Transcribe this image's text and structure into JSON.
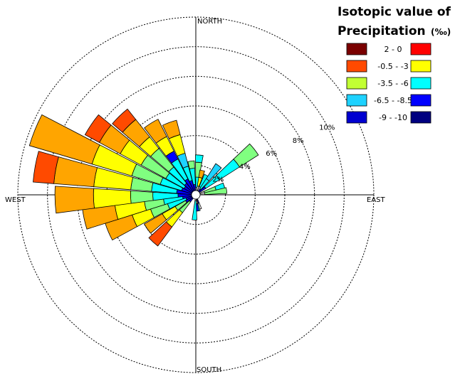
{
  "chart_data": {
    "type": "rose",
    "direction_labels": {
      "north": "NORTH",
      "south": "SOUTH",
      "east": "EAST",
      "west": "WEST"
    },
    "ring_labels": [
      {
        "value": 2,
        "label": "2%"
      },
      {
        "value": 4,
        "label": "4%"
      },
      {
        "value": 6,
        "label": "6%"
      },
      {
        "value": 8,
        "label": "8%"
      },
      {
        "value": 10,
        "label": "10%"
      }
    ],
    "rings": [
      2,
      4,
      6,
      8,
      10,
      12
    ],
    "rmax": 12,
    "ring_label_angle": 64,
    "sector_width_deg": 11,
    "legend": {
      "title_line1": "Isotopic value of",
      "title_line2": "Precipitation",
      "unit": "(‰)",
      "bins": [
        {
          "label": "2 - 0",
          "colors": [
            "#7a0000",
            "#ff0000"
          ]
        },
        {
          "label": "-0.5 - -3",
          "colors": [
            "#ff4a00",
            "#ffff00"
          ]
        },
        {
          "label": "-3.5 - -6",
          "colors": [
            "#c2ff33",
            "#00ffff"
          ]
        },
        {
          "label": "-6.5 - -8.5",
          "colors": [
            "#1ed2ff",
            "#0000ff"
          ]
        },
        {
          "label": "-9 - -10",
          "colors": [
            "#0000d0",
            "#000080"
          ]
        }
      ]
    },
    "sectors": [
      {
        "direction": 5,
        "segments": [
          {
            "value": 0.5,
            "color": "#ffffff"
          },
          {
            "value": 0.7,
            "color": "#00ffff"
          },
          {
            "value": 1.0,
            "color": "#80ff80"
          },
          {
            "value": 0.5,
            "color": "#00ffff"
          }
        ]
      },
      {
        "direction": 15,
        "segments": [
          {
            "value": 0.6,
            "color": "#ffffff"
          },
          {
            "value": 0.6,
            "color": "#ffff00"
          },
          {
            "value": 0.5,
            "color": "#ffa500"
          }
        ]
      },
      {
        "direction": 28,
        "segments": [
          {
            "value": 0.6,
            "color": "#ffffff"
          },
          {
            "value": 0.9,
            "color": "#00ffff"
          }
        ]
      },
      {
        "direction": 38,
        "segments": [
          {
            "value": 0.5,
            "color": "#0000ff"
          },
          {
            "value": 0.8,
            "color": "#00ffff"
          },
          {
            "value": 1.2,
            "color": "#1ed2ff"
          }
        ]
      },
      {
        "direction": 52,
        "segments": [
          {
            "value": 0.8,
            "color": "#0000ff"
          },
          {
            "value": 1.1,
            "color": "#00ffff"
          },
          {
            "value": 1.6,
            "color": "#00ffff"
          },
          {
            "value": 1.5,
            "color": "#80ff80"
          }
        ]
      },
      {
        "direction": 72,
        "segments": [
          {
            "value": 0.6,
            "color": "#ffffff"
          },
          {
            "value": 0.8,
            "color": "#80ff80"
          },
          {
            "value": 0.6,
            "color": "#00ffff"
          }
        ]
      },
      {
        "direction": 82,
        "segments": [
          {
            "value": 0.6,
            "color": "#ffffff"
          },
          {
            "value": 1.5,
            "color": "#80ff80"
          }
        ]
      },
      {
        "direction": 163,
        "segments": [
          {
            "value": 0.6,
            "color": "#0000ff"
          },
          {
            "value": 0.4,
            "color": "#ffffff"
          }
        ]
      },
      {
        "direction": 170,
        "segments": [
          {
            "value": 0.6,
            "color": "#ff0000"
          },
          {
            "value": 0.5,
            "color": "#00ffff"
          }
        ]
      },
      {
        "direction": 175,
        "segments": [
          {
            "value": 0.6,
            "color": "#ffffff"
          },
          {
            "value": 0.5,
            "color": "#0000ff"
          }
        ]
      },
      {
        "direction": 183,
        "segments": [
          {
            "value": 0.4,
            "color": "#ffffff"
          },
          {
            "value": 1.3,
            "color": "#00ffff"
          }
        ]
      },
      {
        "direction": 222,
        "segments": [
          {
            "value": 0.6,
            "color": "#0000ff"
          },
          {
            "value": 0.9,
            "color": "#80ff80"
          },
          {
            "value": 1.2,
            "color": "#ffff00"
          },
          {
            "value": 1.6,
            "color": "#ff4a00"
          }
        ]
      },
      {
        "direction": 235,
        "segments": [
          {
            "value": 0.8,
            "color": "#0000ff"
          },
          {
            "value": 0.8,
            "color": "#80ff80"
          },
          {
            "value": 1.0,
            "color": "#ffff00"
          },
          {
            "value": 1.4,
            "color": "#ffa500"
          }
        ]
      },
      {
        "direction": 247,
        "segments": [
          {
            "value": 0.7,
            "color": "#0000ff"
          },
          {
            "value": 1.3,
            "color": "#00ffff"
          },
          {
            "value": 1.2,
            "color": "#80ff80"
          },
          {
            "value": 1.3,
            "color": "#ffff00"
          },
          {
            "value": 1.9,
            "color": "#ffa500"
          }
        ]
      },
      {
        "direction": 258,
        "segments": [
          {
            "value": 0.9,
            "color": "#0000ff"
          },
          {
            "value": 1.3,
            "color": "#00ffff"
          },
          {
            "value": 1.3,
            "color": "#80ff80"
          },
          {
            "value": 2.0,
            "color": "#ffff00"
          },
          {
            "value": 2.2,
            "color": "#ffa500"
          }
        ]
      },
      {
        "direction": 268,
        "segments": [
          {
            "value": 1.2,
            "color": "#0000ff"
          },
          {
            "value": 1.7,
            "color": "#00ffff"
          },
          {
            "value": 1.5,
            "color": "#80ff80"
          },
          {
            "value": 2.5,
            "color": "#ffff00"
          },
          {
            "value": 2.6,
            "color": "#ffa500"
          }
        ]
      },
      {
        "direction": 280,
        "segments": [
          {
            "value": 1.3,
            "color": "#0000ff"
          },
          {
            "value": 1.7,
            "color": "#00ffff"
          },
          {
            "value": 1.4,
            "color": "#80ff80"
          },
          {
            "value": 2.5,
            "color": "#ffff00"
          },
          {
            "value": 2.7,
            "color": "#ffa500"
          },
          {
            "value": 1.4,
            "color": "#ff4a00"
          }
        ]
      },
      {
        "direction": 292,
        "segments": [
          {
            "value": 1.0,
            "color": "#0000ff"
          },
          {
            "value": 1.5,
            "color": "#00ffff"
          },
          {
            "value": 2.0,
            "color": "#80ff80"
          },
          {
            "value": 2.8,
            "color": "#ffff00"
          },
          {
            "value": 4.4,
            "color": "#ffa500"
          }
        ]
      },
      {
        "direction": 304,
        "segments": [
          {
            "value": 0.9,
            "color": "#0000ff"
          },
          {
            "value": 1.4,
            "color": "#00ffff"
          },
          {
            "value": 1.9,
            "color": "#80ff80"
          },
          {
            "value": 1.6,
            "color": "#ffff00"
          },
          {
            "value": 1.6,
            "color": "#ffa500"
          },
          {
            "value": 1.1,
            "color": "#ff4a00"
          }
        ]
      },
      {
        "direction": 316,
        "segments": [
          {
            "value": 1.0,
            "color": "#0000ff"
          },
          {
            "value": 1.4,
            "color": "#00ffff"
          },
          {
            "value": 1.6,
            "color": "#80ff80"
          },
          {
            "value": 1.0,
            "color": "#ffff00"
          },
          {
            "value": 1.5,
            "color": "#ffa500"
          },
          {
            "value": 0.9,
            "color": "#ff4a00"
          }
        ]
      },
      {
        "direction": 328,
        "segments": [
          {
            "value": 1.2,
            "color": "#0000ff"
          },
          {
            "value": 1.5,
            "color": "#00ffff"
          },
          {
            "value": 0.6,
            "color": "#0000ff"
          },
          {
            "value": 1.1,
            "color": "#ffff00"
          },
          {
            "value": 1.3,
            "color": "#ffa500"
          }
        ]
      },
      {
        "direction": 340,
        "segments": [
          {
            "value": 1.0,
            "color": "#0000ff"
          },
          {
            "value": 1.0,
            "color": "#00ffff"
          },
          {
            "value": 0.9,
            "color": "#1ed2ff"
          },
          {
            "value": 1.3,
            "color": "#ffff00"
          },
          {
            "value": 1.0,
            "color": "#ffa500"
          }
        ]
      },
      {
        "direction": 352,
        "segments": [
          {
            "value": 0.7,
            "color": "#0000ff"
          },
          {
            "value": 1.1,
            "color": "#00ffff"
          },
          {
            "value": 0.5,
            "color": "#80ff80"
          }
        ]
      }
    ]
  }
}
